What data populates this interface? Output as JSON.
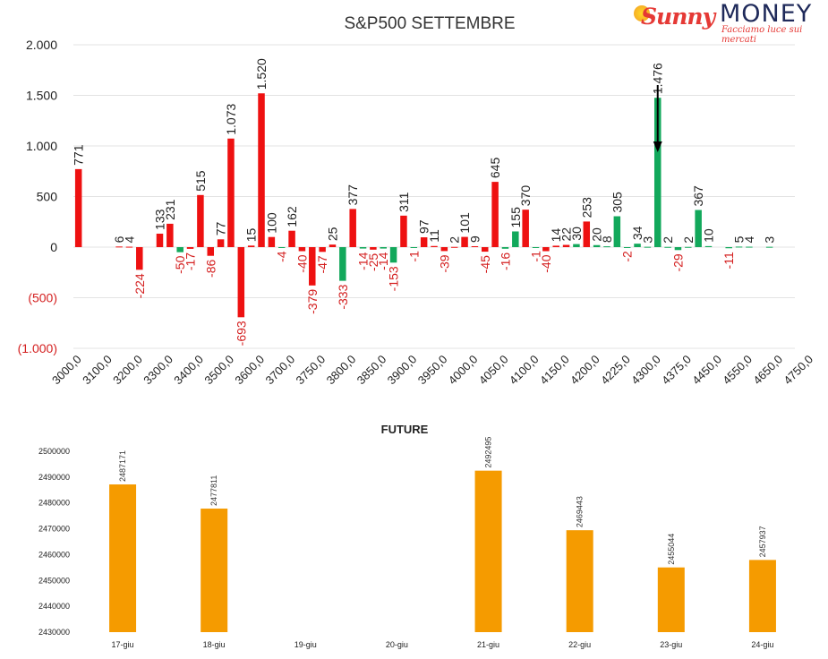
{
  "logo": {
    "brand_sunny": "Sunny",
    "brand_money": "MONEY",
    "tagline": "Facciamo luce sui mercati"
  },
  "chart_data": [
    {
      "type": "bar",
      "title": "S&P500 SETTEMBRE",
      "ylim": [
        -1000,
        2000
      ],
      "yticks": [
        {
          "value": 2000,
          "label": "2.000"
        },
        {
          "value": 1500,
          "label": "1.500"
        },
        {
          "value": 1000,
          "label": "1.000"
        },
        {
          "value": 500,
          "label": "500"
        },
        {
          "value": 0,
          "label": "0"
        },
        {
          "value": -500,
          "label": "(500)"
        },
        {
          "value": -1000,
          "label": "(1.000)"
        }
      ],
      "xticks": [
        "3000,0",
        "3100,0",
        "3200,0",
        "3300,0",
        "3400,0",
        "3500,0",
        "3600,0",
        "3700,0",
        "3750,0",
        "3800,0",
        "3850,0",
        "3900,0",
        "3950,0",
        "4000,0",
        "4050,0",
        "4100,0",
        "4150,0",
        "4200,0",
        "4225,0",
        "4300,0",
        "4375,0",
        "4450,0",
        "4550,0",
        "4650,0",
        "4750,0"
      ],
      "grid": true,
      "colors": {
        "red": "#ee1111",
        "green": "#12a85b",
        "negative_label": "#d42020"
      },
      "annotation": {
        "type": "arrow-down",
        "x_slot": 57.5
      },
      "bars": [
        {
          "x": 0,
          "value": 771,
          "label": "771",
          "color": "red"
        },
        {
          "x": 4,
          "value": 6,
          "label": "6",
          "color": "red"
        },
        {
          "x": 5,
          "value": 4,
          "label": "4",
          "color": "red"
        },
        {
          "x": 6,
          "value": -224,
          "label": "-224",
          "color": "red"
        },
        {
          "x": 8,
          "value": 133,
          "label": "133",
          "color": "red"
        },
        {
          "x": 9,
          "value": 231,
          "label": "231",
          "color": "red"
        },
        {
          "x": 10,
          "value": -50,
          "label": "-50",
          "color": "green"
        },
        {
          "x": 11,
          "value": -17,
          "label": "-17",
          "color": "red"
        },
        {
          "x": 12,
          "value": 515,
          "label": "515",
          "color": "red"
        },
        {
          "x": 13,
          "value": -86,
          "label": "-86",
          "color": "red"
        },
        {
          "x": 14,
          "value": 77,
          "label": "77",
          "color": "red"
        },
        {
          "x": 15,
          "value": 1073,
          "label": "1.073",
          "color": "red"
        },
        {
          "x": 16,
          "value": -693,
          "label": "-693",
          "color": "red"
        },
        {
          "x": 17,
          "value": 15,
          "label": "15",
          "color": "red"
        },
        {
          "x": 18,
          "value": 1520,
          "label": "1.520",
          "color": "red"
        },
        {
          "x": 19,
          "value": 100,
          "label": "100",
          "color": "red"
        },
        {
          "x": 20,
          "value": -4,
          "label": "-4",
          "color": "green"
        },
        {
          "x": 21,
          "value": 162,
          "label": "162",
          "color": "red"
        },
        {
          "x": 22,
          "value": -40,
          "label": "-40",
          "color": "red"
        },
        {
          "x": 23,
          "value": -379,
          "label": "-379",
          "color": "red"
        },
        {
          "x": 24,
          "value": -47,
          "label": "-47",
          "color": "red"
        },
        {
          "x": 25,
          "value": 25,
          "label": "25",
          "color": "red"
        },
        {
          "x": 26,
          "value": -333,
          "label": "-333",
          "color": "green"
        },
        {
          "x": 27,
          "value": 377,
          "label": "377",
          "color": "red"
        },
        {
          "x": 28,
          "value": -14,
          "label": "-14",
          "color": "green"
        },
        {
          "x": 29,
          "value": -25,
          "label": "-25",
          "color": "red"
        },
        {
          "x": 30,
          "value": -14,
          "label": "-14",
          "color": "green"
        },
        {
          "x": 31,
          "value": -153,
          "label": "-153",
          "color": "green"
        },
        {
          "x": 32,
          "value": 311,
          "label": "311",
          "color": "red"
        },
        {
          "x": 33,
          "value": -1,
          "label": "-1",
          "color": "green"
        },
        {
          "x": 34,
          "value": 97,
          "label": "97",
          "color": "red"
        },
        {
          "x": 35,
          "value": 11,
          "label": "11",
          "color": "red"
        },
        {
          "x": 36,
          "value": -39,
          "label": "-39",
          "color": "red"
        },
        {
          "x": 37,
          "value": 2,
          "label": "2",
          "color": "red"
        },
        {
          "x": 38,
          "value": 101,
          "label": "101",
          "color": "red"
        },
        {
          "x": 39,
          "value": 9,
          "label": "9",
          "color": "red"
        },
        {
          "x": 40,
          "value": -45,
          "label": "-45",
          "color": "red"
        },
        {
          "x": 41,
          "value": 645,
          "label": "645",
          "color": "red"
        },
        {
          "x": 42,
          "value": -16,
          "label": "-16",
          "color": "green"
        },
        {
          "x": 43,
          "value": 155,
          "label": "155",
          "color": "green"
        },
        {
          "x": 44,
          "value": 370,
          "label": "370",
          "color": "red"
        },
        {
          "x": 45,
          "value": -1,
          "label": "-1",
          "color": "green"
        },
        {
          "x": 46,
          "value": -40,
          "label": "-40",
          "color": "red"
        },
        {
          "x": 47,
          "value": 14,
          "label": "14",
          "color": "red"
        },
        {
          "x": 48,
          "value": 22,
          "label": "22",
          "color": "red"
        },
        {
          "x": 49,
          "value": 30,
          "label": "30",
          "color": "green"
        },
        {
          "x": 50,
          "value": 253,
          "label": "253",
          "color": "red"
        },
        {
          "x": 51,
          "value": 20,
          "label": "20",
          "color": "green"
        },
        {
          "x": 52,
          "value": 8,
          "label": "8",
          "color": "green"
        },
        {
          "x": 53,
          "value": 305,
          "label": "305",
          "color": "green"
        },
        {
          "x": 54,
          "value": -2,
          "label": "-2",
          "color": "green"
        },
        {
          "x": 55,
          "value": 34,
          "label": "34",
          "color": "green"
        },
        {
          "x": 56,
          "value": 3,
          "label": "3",
          "color": "green"
        },
        {
          "x": 57,
          "value": 1476,
          "label": "1.476",
          "color": "green"
        },
        {
          "x": 58,
          "value": 2,
          "label": "2",
          "color": "green"
        },
        {
          "x": 59,
          "value": -29,
          "label": "-29",
          "color": "green"
        },
        {
          "x": 60,
          "value": 2,
          "label": "2",
          "color": "green"
        },
        {
          "x": 61,
          "value": 367,
          "label": "367",
          "color": "green"
        },
        {
          "x": 62,
          "value": 10,
          "label": "10",
          "color": "green"
        },
        {
          "x": 64,
          "value": -11,
          "label": "-11",
          "color": "green"
        },
        {
          "x": 65,
          "value": 5,
          "label": "5",
          "color": "green"
        },
        {
          "x": 66,
          "value": 4,
          "label": "4",
          "color": "green"
        },
        {
          "x": 68,
          "value": 3,
          "label": "3",
          "color": "green"
        }
      ]
    },
    {
      "type": "bar",
      "title": "FUTURE",
      "ylim": [
        2430000,
        2500000
      ],
      "yticks": [
        "2500000",
        "2490000",
        "2480000",
        "2470000",
        "2460000",
        "2450000",
        "2440000",
        "2430000"
      ],
      "categories": [
        "17-giu",
        "18-giu",
        "19-giu",
        "20-giu",
        "21-giu",
        "22-giu",
        "23-giu",
        "24-giu"
      ],
      "values": [
        2487171,
        2477811,
        null,
        null,
        2492495,
        2469443,
        2455044,
        2457937
      ],
      "labels": [
        "2487171",
        "2477811",
        "",
        "",
        "2492495",
        "2469443",
        "2455044",
        "2457937"
      ],
      "color": "#f59b00",
      "grid": false
    }
  ]
}
